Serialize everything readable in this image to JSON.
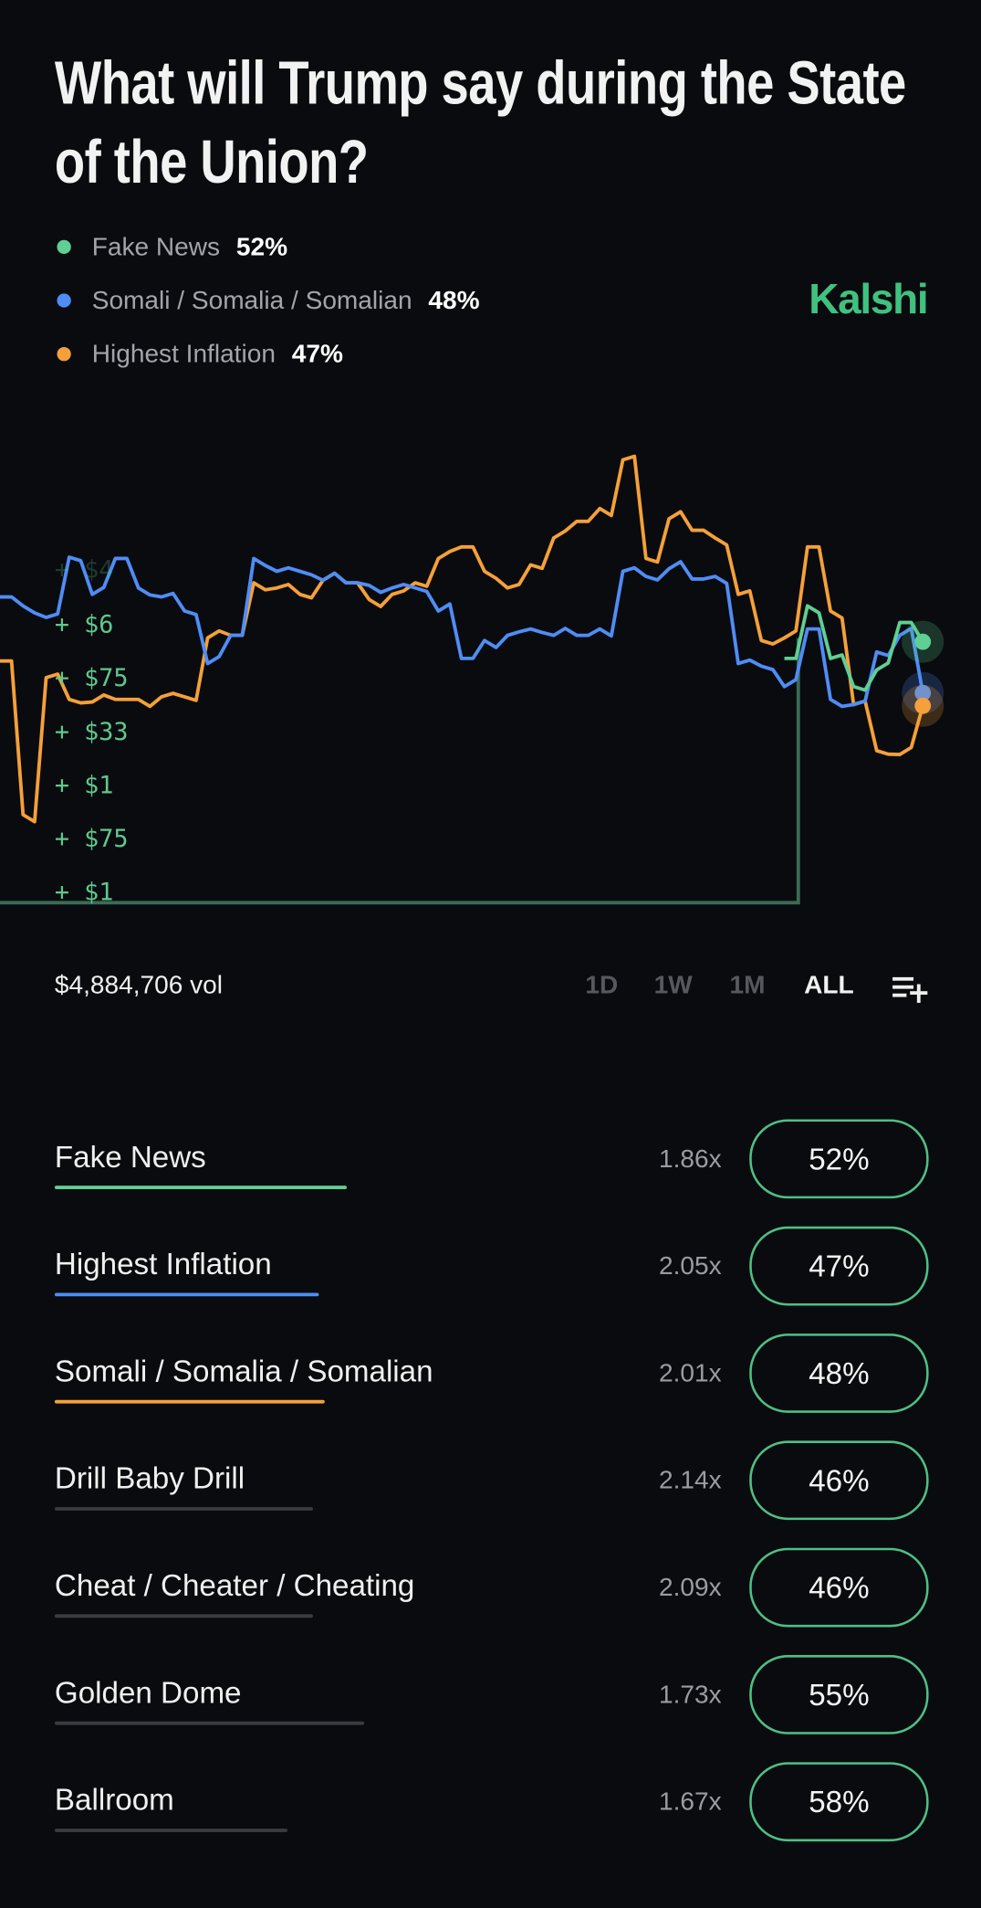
{
  "title": "What will Trump say during the State of the Union?",
  "legend": [
    {
      "label": "Fake News",
      "pct": "52%",
      "color": "#5fcf93"
    },
    {
      "label": "Somali / Somalia / Somalian",
      "pct": "48%",
      "color": "#4f8df5"
    },
    {
      "label": "Highest Inflation",
      "pct": "47%",
      "color": "#f5a03a"
    }
  ],
  "brand": "Kalshi",
  "trade_ticker": [
    "+ $4",
    "+ $6",
    "+ $75",
    "+ $33",
    "+ $1",
    "+ $75",
    "+ $1"
  ],
  "volume": "$4,884,706 vol",
  "ranges": [
    {
      "label": "1D",
      "active": false
    },
    {
      "label": "1W",
      "active": false
    },
    {
      "label": "1M",
      "active": false
    },
    {
      "label": "ALL",
      "active": true
    }
  ],
  "list_add_icon": "playlist-add-icon",
  "chart_data": {
    "type": "line",
    "unit": "%",
    "series": [
      {
        "name": "Somali / Somalia / Somalian",
        "color": "#4f8df5",
        "start_index": 0,
        "values": [
          55.5,
          54.8,
          53.9,
          58.6,
          55.7,
          58.5,
          56.2,
          55.5,
          54.4,
          50.3,
          52.5,
          58.5,
          57.5,
          57.5,
          56.8,
          56.6,
          56.4,
          56.2,
          56.2,
          54.4,
          50.7,
          52.1,
          52.5,
          53.0,
          52.5,
          52.5,
          53.0,
          57.5,
          57.1,
          57.7,
          56.9,
          57.1,
          50.3,
          50.1,
          48.5,
          53.0,
          47.5,
          47.1,
          51.2,
          52.5,
          48
        ]
      },
      {
        "name": "Highest Inflation",
        "color": "#f5a03a",
        "start_index": 0,
        "values": [
          50.5,
          38.5,
          49.2,
          47.5,
          47.3,
          47.5,
          47.5,
          47.7,
          47.7,
          52.3,
          52.5,
          56.6,
          56.2,
          55.7,
          56.8,
          56.6,
          55.3,
          55.7,
          56.6,
          58.5,
          59.4,
          57.5,
          56.2,
          58.0,
          60.1,
          61.4,
          62.4,
          66.2,
          58.5,
          61.6,
          60.7,
          60.1,
          55.7,
          52.1,
          52.3,
          59.4,
          54.4,
          47.1,
          43.5,
          43.2,
          47
        ]
      },
      {
        "name": "Fake News",
        "color": "#5fcf93",
        "start_index": 34,
        "values": [
          50.7,
          54.8,
          50.7,
          48.5,
          49.8,
          53.5,
          52
        ]
      }
    ]
  },
  "markets": [
    {
      "name": "Fake News",
      "multiplier": "1.86x",
      "pct": "52%",
      "color": "#5fcf93"
    },
    {
      "name": "Highest Inflation",
      "multiplier": "2.05x",
      "pct": "47%",
      "color": "#4f8df5"
    },
    {
      "name": "Somali / Somalia / Somalian",
      "multiplier": "2.01x",
      "pct": "48%",
      "color": "#f5a03a"
    },
    {
      "name": "Drill Baby Drill",
      "multiplier": "2.14x",
      "pct": "46%",
      "color": "#3a3c41"
    },
    {
      "name": "Cheat / Cheater / Cheating",
      "multiplier": "2.09x",
      "pct": "46%",
      "color": "#3a3c41"
    },
    {
      "name": "Golden Dome",
      "multiplier": "1.73x",
      "pct": "55%",
      "color": "#3a3c41"
    },
    {
      "name": "Ballroom",
      "multiplier": "1.67x",
      "pct": "58%",
      "color": "#3a3c41"
    }
  ]
}
